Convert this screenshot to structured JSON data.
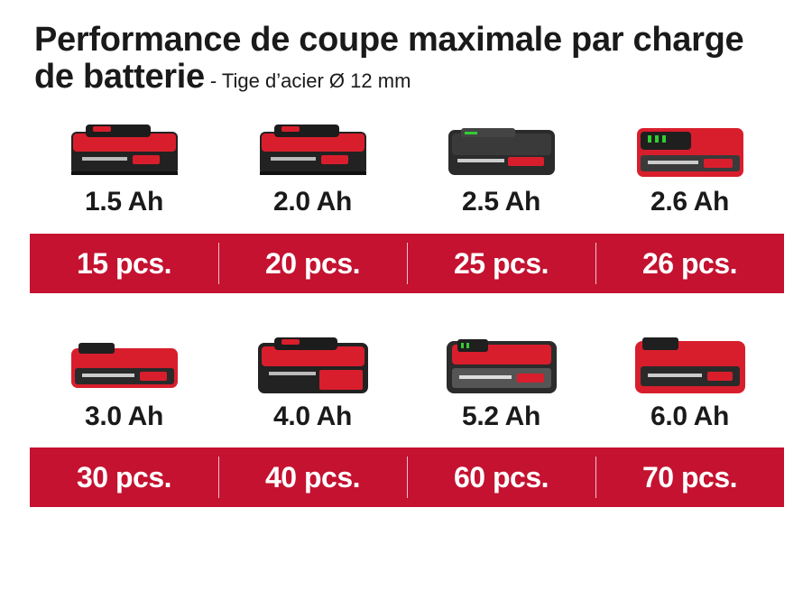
{
  "title": {
    "main": "Performance de coupe maximale par charge de batterie",
    "subtitle": "- Tige d’acier Ø 12 mm"
  },
  "rows": [
    {
      "items": [
        {
          "capacity": "1.5 Ah",
          "count": "15 pcs.",
          "style": "pxc-compact"
        },
        {
          "capacity": "2.0 Ah",
          "count": "20 pcs.",
          "style": "pxc-compact"
        },
        {
          "capacity": "2.5 Ah",
          "count": "25 pcs.",
          "style": "plus-compact"
        },
        {
          "capacity": "2.6 Ah",
          "count": "26 pcs.",
          "style": "plus-compact-red"
        }
      ]
    },
    {
      "items": [
        {
          "capacity": "3.0 Ah",
          "count": "30 pcs.",
          "style": "plus-slim-red"
        },
        {
          "capacity": "4.0 Ah",
          "count": "40 pcs.",
          "style": "pxc-tall"
        },
        {
          "capacity": "5.2 Ah",
          "count": "60 pcs.",
          "style": "plus-tall"
        },
        {
          "capacity": "6.0 Ah",
          "count": "70 pcs.",
          "style": "plus-tall-red"
        }
      ]
    }
  ],
  "colors": {
    "band": "#c41230",
    "battery_red": "#d81e2c",
    "battery_dark": "#2b2b2b"
  },
  "icons": [
    "battery-pack-icon"
  ]
}
